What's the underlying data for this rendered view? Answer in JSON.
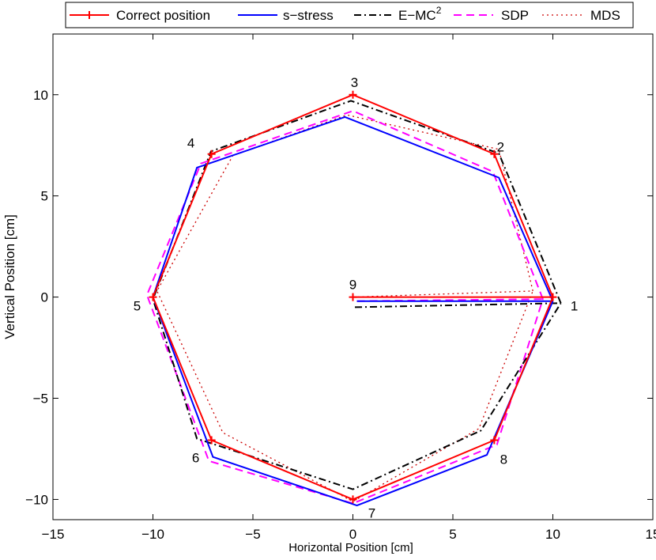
{
  "chart_data": {
    "type": "line",
    "title": "",
    "xlabel": "Horizontal Position [cm]",
    "ylabel": "Vertical Position [cm]",
    "xlim": [
      -15,
      15
    ],
    "ylim": [
      -11,
      13
    ],
    "xticks": [
      -15,
      -10,
      -5,
      0,
      5,
      10,
      15
    ],
    "yticks": [
      -10,
      -5,
      0,
      5,
      10
    ],
    "grid": false,
    "legend_position": "top",
    "series": [
      {
        "name": "Correct position",
        "color": "#ff0000",
        "style": "solid-plus",
        "x": [
          10,
          7.07,
          0,
          -7.07,
          -10,
          -7.07,
          0,
          7.07,
          10
        ],
        "y": [
          0,
          7.07,
          10,
          7.07,
          0,
          -7.07,
          -10,
          -7.07,
          0
        ],
        "spoke": {
          "x": [
            0,
            10
          ],
          "y": [
            0,
            0
          ]
        }
      },
      {
        "name": "s−stress",
        "color": "#0000ff",
        "style": "solid",
        "x": [
          10.0,
          7.3,
          -0.4,
          -7.8,
          -10.0,
          -7.0,
          0.2,
          6.7,
          10.0
        ],
        "y": [
          -0.2,
          5.9,
          8.9,
          6.4,
          0.0,
          -7.9,
          -10.3,
          -7.8,
          -0.2
        ],
        "spoke": {
          "x": [
            0.2,
            10.0
          ],
          "y": [
            -0.2,
            -0.2
          ]
        }
      },
      {
        "name": "E−MC",
        "name_sup": "2",
        "color": "#000000",
        "style": "dashdot",
        "x": [
          10.4,
          7.3,
          -0.1,
          -7.1,
          -10.0,
          -7.8,
          0.0,
          6.4,
          10.4
        ],
        "y": [
          -0.3,
          7.1,
          9.7,
          7.2,
          -0.1,
          -7.0,
          -9.5,
          -6.6,
          -0.3
        ],
        "spoke": {
          "x": [
            0.1,
            10.4
          ],
          "y": [
            -0.5,
            -0.3
          ]
        }
      },
      {
        "name": "SDP",
        "color": "#ff00ff",
        "style": "dashed",
        "x": [
          9.5,
          7.0,
          0.0,
          -7.6,
          -10.3,
          -7.2,
          0.0,
          7.2,
          9.5
        ],
        "y": [
          -0.1,
          6.2,
          9.2,
          6.6,
          0.1,
          -8.1,
          -10.2,
          -7.3,
          -0.1
        ],
        "spoke": {
          "x": [
            0.2,
            9.5
          ],
          "y": [
            -0.2,
            -0.1
          ]
        }
      },
      {
        "name": "MDS",
        "color": "#cc0000",
        "style": "dotted",
        "x": [
          9.0,
          7.3,
          -0.3,
          -6.0,
          -9.8,
          -6.5,
          0.0,
          6.3,
          9.0
        ],
        "y": [
          0.3,
          7.3,
          9.0,
          7.0,
          0.3,
          -6.7,
          -10.1,
          -6.5,
          0.3
        ],
        "spoke": {
          "x": [
            0.0,
            9.0
          ],
          "y": [
            0.0,
            0.3
          ]
        }
      }
    ],
    "point_labels": [
      {
        "text": "1",
        "x": 10.2,
        "y": 0
      },
      {
        "text": "2",
        "x": 7.07,
        "y": 7.07
      },
      {
        "text": "3",
        "x": 0,
        "y": 10
      },
      {
        "text": "4",
        "x": -7.07,
        "y": 7.07
      },
      {
        "text": "5",
        "x": -10,
        "y": 0
      },
      {
        "text": "6",
        "x": -7.07,
        "y": -7.07
      },
      {
        "text": "7",
        "x": 0,
        "y": -10
      },
      {
        "text": "8",
        "x": 7.07,
        "y": -7.07
      },
      {
        "text": "9",
        "x": 0,
        "y": 0
      }
    ]
  }
}
